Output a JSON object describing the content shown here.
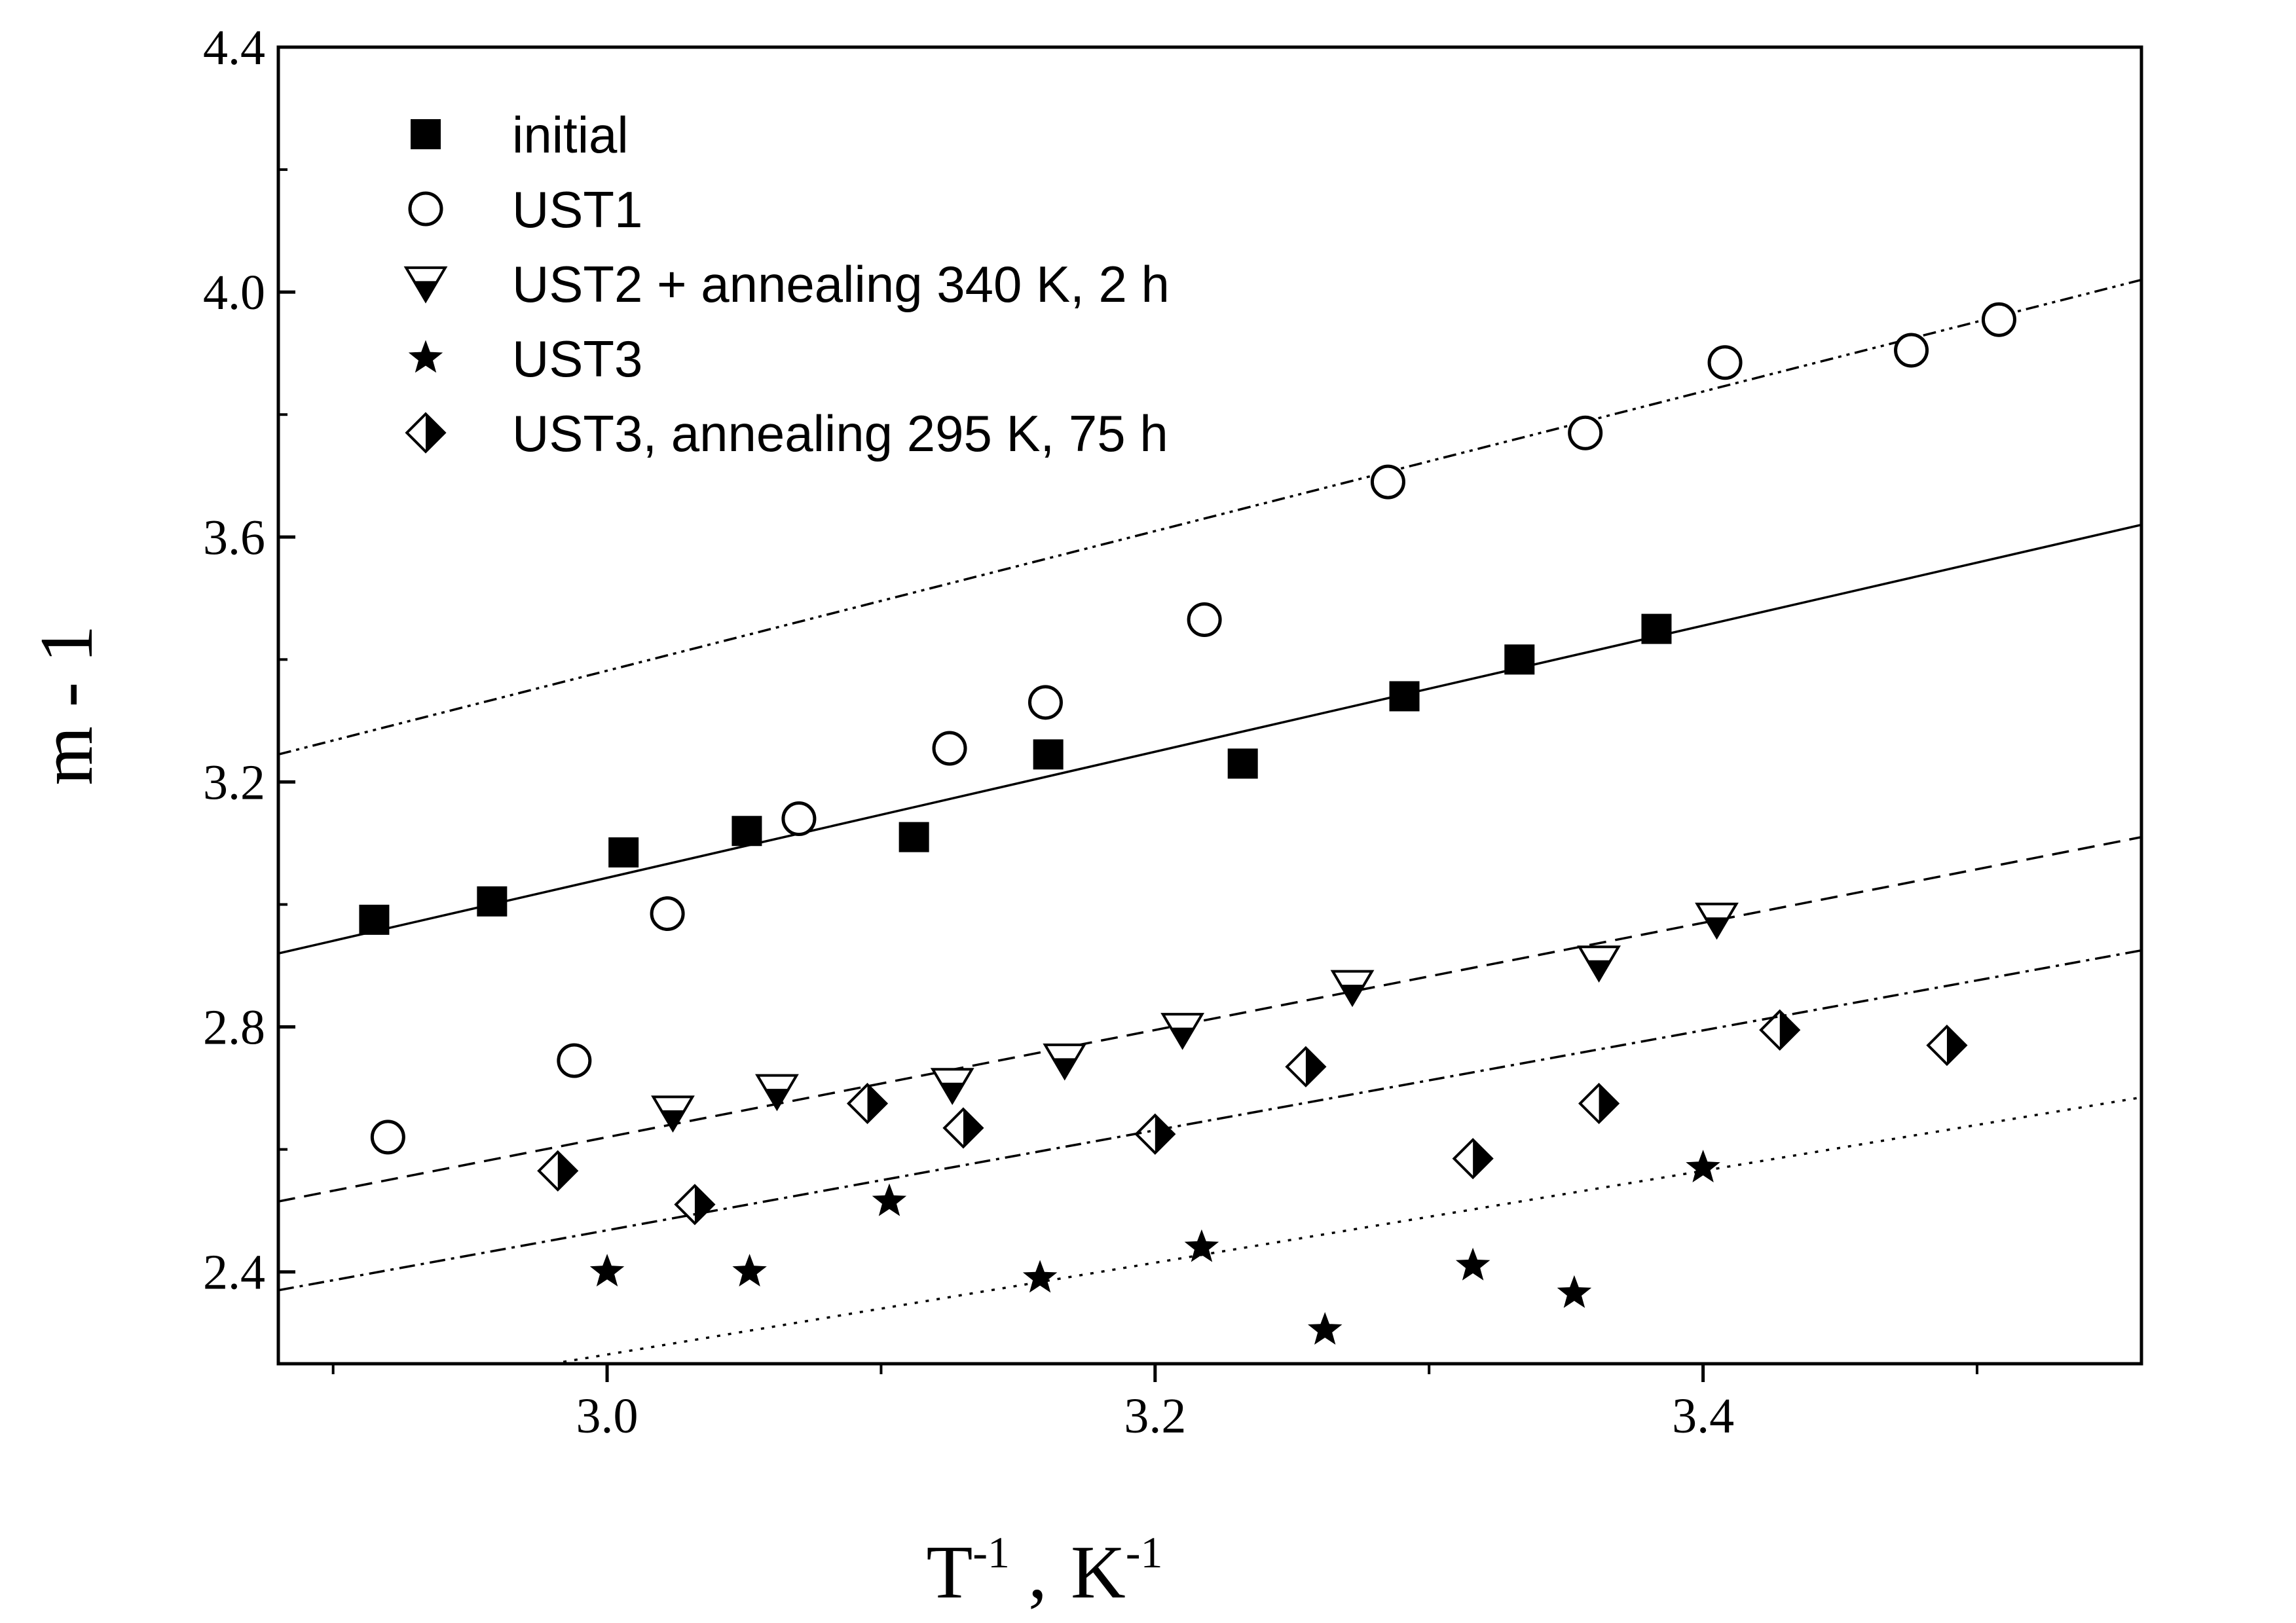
{
  "chart_data": {
    "type": "scatter",
    "title": "",
    "xlabel": {
      "base": "T",
      "sup": "-1",
      "sep": ",",
      "unit": "K",
      "unit_sup": "-1"
    },
    "ylabel": "m - 1",
    "xlim": [
      2.88,
      3.56
    ],
    "ylim": [
      2.25,
      4.4
    ],
    "x_ticks": [
      3.0,
      3.2,
      3.4
    ],
    "x_tick_labels": [
      "3.0",
      "3.2",
      "3.4"
    ],
    "x_minor_ticks": [
      2.9,
      3.1,
      3.3,
      3.5
    ],
    "y_ticks": [
      2.4,
      2.8,
      3.2,
      3.6,
      4.0,
      4.4
    ],
    "y_tick_labels": [
      "2.4",
      "2.8",
      "3.2",
      "3.6",
      "4.0",
      "4.4"
    ],
    "legend_position": "top-left",
    "series": [
      {
        "name": "initial",
        "marker": "filled-square",
        "points": [
          [
            2.915,
            2.975
          ],
          [
            2.958,
            3.005
          ],
          [
            3.006,
            3.085
          ],
          [
            3.051,
            3.12
          ],
          [
            3.112,
            3.11
          ],
          [
            3.161,
            3.245
          ],
          [
            3.232,
            3.23
          ],
          [
            3.291,
            3.34
          ],
          [
            3.333,
            3.4
          ],
          [
            3.383,
            3.45
          ]
        ],
        "fit": {
          "style": "solid",
          "x": [
            2.88,
            3.56
          ],
          "y": [
            2.92,
            3.62
          ]
        }
      },
      {
        "name": "UST1",
        "marker": "open-circle",
        "points": [
          [
            2.92,
            2.62
          ],
          [
            2.988,
            2.745
          ],
          [
            3.022,
            2.985
          ],
          [
            3.07,
            3.14
          ],
          [
            3.125,
            3.255
          ],
          [
            3.16,
            3.33
          ],
          [
            3.218,
            3.465
          ],
          [
            3.285,
            3.69
          ],
          [
            3.357,
            3.77
          ],
          [
            3.408,
            3.885
          ],
          [
            3.476,
            3.905
          ],
          [
            3.508,
            3.955
          ]
        ],
        "fit": {
          "style": "dash-dot-dot",
          "x": [
            2.88,
            3.56
          ],
          "y": [
            3.245,
            4.02
          ]
        }
      },
      {
        "name": "UST2 + annealing 340 K, 2 h",
        "marker": "half-filled-down-triangle",
        "points": [
          [
            3.024,
            2.66
          ],
          [
            3.062,
            2.695
          ],
          [
            3.126,
            2.705
          ],
          [
            3.167,
            2.745
          ],
          [
            3.21,
            2.795
          ],
          [
            3.272,
            2.865
          ],
          [
            3.362,
            2.905
          ],
          [
            3.405,
            2.975
          ]
        ],
        "fit": {
          "style": "dashed",
          "x": [
            2.88,
            3.56
          ],
          "y": [
            2.515,
            3.11
          ]
        }
      },
      {
        "name": "UST3",
        "marker": "filled-star",
        "points": [
          [
            3.0,
            2.4
          ],
          [
            3.052,
            2.4
          ],
          [
            3.103,
            2.515
          ],
          [
            3.158,
            2.39
          ],
          [
            3.217,
            2.44
          ],
          [
            3.262,
            2.305
          ],
          [
            3.316,
            2.41
          ],
          [
            3.353,
            2.365
          ],
          [
            3.4,
            2.57
          ]
        ],
        "fit": {
          "style": "dotted",
          "x": [
            2.98,
            3.56
          ],
          "y": [
            2.25,
            2.685
          ]
        }
      },
      {
        "name": "UST3, annealing 295 K, 75 h",
        "marker": "half-filled-diamond",
        "points": [
          [
            2.982,
            2.565
          ],
          [
            3.032,
            2.51
          ],
          [
            3.095,
            2.675
          ],
          [
            3.13,
            2.635
          ],
          [
            3.2,
            2.625
          ],
          [
            3.255,
            2.735
          ],
          [
            3.316,
            2.585
          ],
          [
            3.362,
            2.675
          ],
          [
            3.428,
            2.795
          ],
          [
            3.489,
            2.77
          ]
        ],
        "fit": {
          "style": "dash-dot",
          "x": [
            2.88,
            3.56
          ],
          "y": [
            2.37,
            2.925
          ]
        }
      }
    ]
  }
}
